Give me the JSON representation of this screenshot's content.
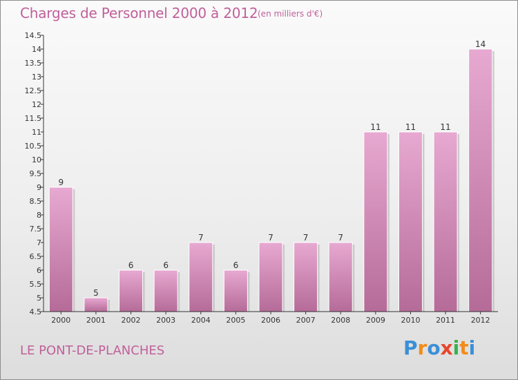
{
  "header": {
    "title": "Charges de Personnel 2000 à 2012",
    "subtitle": "(en milliers d'€)"
  },
  "footer": {
    "commune": "LE PONT-DE-PLANCHES",
    "logo_text": "Proxiti"
  },
  "colors": {
    "bar_top": "#e7a9d1",
    "bar_bottom": "#b56b98",
    "accent": "#c0609a"
  },
  "chart_data": {
    "type": "bar",
    "categories": [
      "2000",
      "2001",
      "2002",
      "2003",
      "2004",
      "2005",
      "2006",
      "2007",
      "2008",
      "2009",
      "2010",
      "2011",
      "2012"
    ],
    "values": [
      9,
      5,
      6,
      6,
      7,
      6,
      7,
      7,
      7,
      11,
      11,
      11,
      14
    ],
    "data_labels": [
      "9",
      "5",
      "6",
      "6",
      "7",
      "6",
      "7",
      "7",
      "7",
      "11",
      "11",
      "11",
      "14"
    ],
    "title": "Charges de Personnel 2000 à 2012",
    "subtitle": "(en milliers d'€)",
    "xlabel": "",
    "ylabel": "",
    "ylim": [
      4.5,
      14.5
    ],
    "yticks": [
      4.5,
      5,
      5.5,
      6,
      6.5,
      7,
      7.5,
      8,
      8.5,
      9,
      9.5,
      10,
      10.5,
      11,
      11.5,
      12,
      12.5,
      13,
      13.5,
      14,
      14.5
    ],
    "ytick_labels": [
      "4.5",
      "5",
      "5.5",
      "6",
      "6.5",
      "7",
      "7.5",
      "8",
      "8.5",
      "9",
      "9.5",
      "10",
      "10.5",
      "11",
      "11.5",
      "12",
      "12.5",
      "13",
      "13.5",
      "14",
      "14.5"
    ],
    "grid": false,
    "legend": "none"
  }
}
